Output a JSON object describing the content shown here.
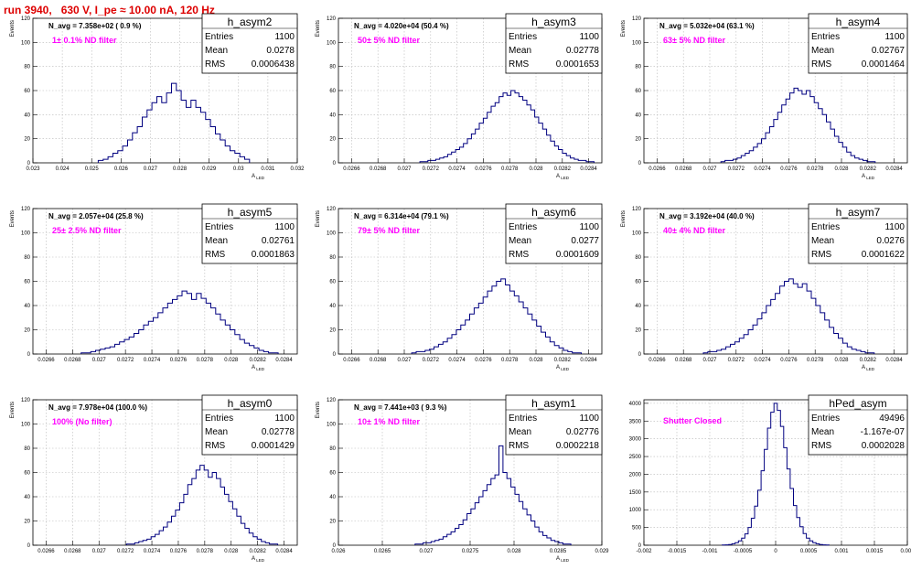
{
  "title": "run 3940,   630 V, I_pe ≈ 10.00 nA, 120 Hz",
  "stat_labels": {
    "entries": "Entries",
    "mean": "Mean",
    "rms": "RMS"
  },
  "chart_data": [
    {
      "type": "histogram",
      "name": "h_asym2",
      "navg": "N_avg = 7.358e+02 ( 0.9 %)",
      "filter": "1± 0.1% ND filter",
      "stats": {
        "entries": "1100",
        "mean": "0.0278",
        "rms": "0.0006438"
      },
      "xlabel": "A_LED",
      "ylabel": "Events",
      "xlim": [
        0.023,
        0.032
      ],
      "ylim": [
        0,
        120
      ],
      "xticks": [
        0.023,
        0.024,
        0.025,
        0.026,
        0.027,
        0.028,
        0.029,
        0.03,
        0.031,
        0.032
      ],
      "xtick_labels": [
        "0.023",
        "0.024",
        "0.025",
        "0.026",
        "0.027",
        "0.028",
        "0.029",
        "0.03",
        "0.031",
        "0.032"
      ],
      "yticks": [
        0,
        20,
        40,
        60,
        80,
        100,
        120
      ],
      "values": [
        2,
        3,
        5,
        8,
        10,
        14,
        19,
        25,
        30,
        38,
        44,
        50,
        55,
        50,
        58,
        66,
        60,
        52,
        46,
        52,
        46,
        42,
        36,
        30,
        24,
        19,
        14,
        10,
        8,
        5,
        3
      ]
    },
    {
      "type": "histogram",
      "name": "h_asym3",
      "navg": "N_avg = 4.020e+04 (50.4 %)",
      "filter": "50± 5% ND filter",
      "stats": {
        "entries": "1100",
        "mean": "0.02778",
        "rms": "0.0001653"
      },
      "xlabel": "A_LED",
      "ylabel": "Events",
      "xlim": [
        0.0265,
        0.0285
      ],
      "ylim": [
        0,
        120
      ],
      "xticks": [
        0.0266,
        0.0268,
        0.027,
        0.0272,
        0.0274,
        0.0276,
        0.0278,
        0.028,
        0.0282,
        0.0284
      ],
      "xtick_labels": [
        "0.0266",
        "0.0268",
        "0.027",
        "0.0272",
        "0.0274",
        "0.0276",
        "0.0278",
        "0.028",
        "0.0282",
        "0.0284"
      ],
      "yticks": [
        0,
        20,
        40,
        60,
        80,
        100,
        120
      ],
      "values": [
        1,
        1,
        2,
        2,
        3,
        4,
        5,
        7,
        9,
        11,
        13,
        16,
        20,
        24,
        28,
        33,
        37,
        42,
        47,
        50,
        55,
        58,
        56,
        60,
        58,
        55,
        52,
        48,
        44,
        38,
        33,
        28,
        23,
        18,
        14,
        11,
        8,
        6,
        4,
        3,
        2,
        2,
        1,
        1
      ]
    },
    {
      "type": "histogram",
      "name": "h_asym4",
      "navg": "N_avg = 5.032e+04 (63.1 %)",
      "filter": "63± 5% ND filter",
      "stats": {
        "entries": "1100",
        "mean": "0.02767",
        "rms": "0.0001464"
      },
      "xlabel": "A_LED",
      "ylabel": "Events",
      "xlim": [
        0.0265,
        0.0285
      ],
      "ylim": [
        0,
        120
      ],
      "xticks": [
        0.0266,
        0.0268,
        0.027,
        0.0272,
        0.0274,
        0.0276,
        0.0278,
        0.028,
        0.0282,
        0.0284
      ],
      "xtick_labels": [
        "0.0266",
        "0.0268",
        "0.027",
        "0.0272",
        "0.0274",
        "0.0276",
        "0.0278",
        "0.028",
        "0.0282",
        "0.0284"
      ],
      "yticks": [
        0,
        20,
        40,
        60,
        80,
        100,
        120
      ],
      "values": [
        1,
        2,
        2,
        3,
        4,
        6,
        8,
        10,
        13,
        16,
        20,
        25,
        30,
        36,
        42,
        48,
        53,
        58,
        62,
        60,
        57,
        60,
        55,
        50,
        45,
        40,
        34,
        28,
        22,
        17,
        13,
        9,
        6,
        4,
        3,
        2,
        1,
        1
      ]
    },
    {
      "type": "histogram",
      "name": "h_asym5",
      "navg": "N_avg = 2.057e+04 (25.8 %)",
      "filter": "25± 2.5% ND filter",
      "stats": {
        "entries": "1100",
        "mean": "0.02761",
        "rms": "0.0001863"
      },
      "xlabel": "A_LED",
      "ylabel": "Events",
      "xlim": [
        0.0265,
        0.0285
      ],
      "ylim": [
        0,
        120
      ],
      "xticks": [
        0.0266,
        0.0268,
        0.027,
        0.0272,
        0.0274,
        0.0276,
        0.0278,
        0.028,
        0.0282,
        0.0284
      ],
      "xtick_labels": [
        "0.0266",
        "0.0268",
        "0.027",
        "0.0272",
        "0.0274",
        "0.0276",
        "0.0278",
        "0.028",
        "0.0282",
        "0.0284"
      ],
      "yticks": [
        0,
        20,
        40,
        60,
        80,
        100,
        120
      ],
      "values": [
        1,
        1,
        2,
        3,
        4,
        5,
        6,
        8,
        10,
        12,
        14,
        17,
        20,
        24,
        27,
        30,
        34,
        38,
        42,
        45,
        48,
        52,
        50,
        45,
        50,
        46,
        42,
        38,
        33,
        28,
        24,
        20,
        16,
        12,
        9,
        7,
        5,
        3,
        2,
        1,
        1
      ]
    },
    {
      "type": "histogram",
      "name": "h_asym6",
      "navg": "N_avg = 6.314e+04 (79.1 %)",
      "filter": "79± 5% ND filter",
      "stats": {
        "entries": "1100",
        "mean": "0.0277",
        "rms": "0.0001609"
      },
      "xlabel": "A_LED",
      "ylabel": "Events",
      "xlim": [
        0.0265,
        0.0285
      ],
      "ylim": [
        0,
        120
      ],
      "xticks": [
        0.0266,
        0.0268,
        0.027,
        0.0272,
        0.0274,
        0.0276,
        0.0278,
        0.028,
        0.0282,
        0.0284
      ],
      "xtick_labels": [
        "0.0266",
        "0.0268",
        "0.027",
        "0.0272",
        "0.0274",
        "0.0276",
        "0.0278",
        "0.028",
        "0.0282",
        "0.0284"
      ],
      "yticks": [
        0,
        20,
        40,
        60,
        80,
        100,
        120
      ],
      "values": [
        1,
        2,
        2,
        3,
        4,
        6,
        8,
        10,
        13,
        16,
        20,
        24,
        28,
        33,
        38,
        42,
        47,
        52,
        56,
        60,
        62,
        57,
        52,
        48,
        43,
        38,
        33,
        28,
        23,
        18,
        14,
        10,
        7,
        5,
        3,
        2,
        1,
        1
      ]
    },
    {
      "type": "histogram",
      "name": "h_asym7",
      "navg": "N_avg = 3.192e+04 (40.0 %)",
      "filter": "40± 4% ND filter",
      "stats": {
        "entries": "1100",
        "mean": "0.0276",
        "rms": "0.0001622"
      },
      "xlabel": "A_LED",
      "ylabel": "Events",
      "xlim": [
        0.0265,
        0.0285
      ],
      "ylim": [
        0,
        120
      ],
      "xticks": [
        0.0266,
        0.0268,
        0.027,
        0.0272,
        0.0274,
        0.0276,
        0.0278,
        0.028,
        0.0282,
        0.0284
      ],
      "xtick_labels": [
        "0.0266",
        "0.0268",
        "0.027",
        "0.0272",
        "0.0274",
        "0.0276",
        "0.0278",
        "0.028",
        "0.0282",
        "0.0284"
      ],
      "yticks": [
        0,
        20,
        40,
        60,
        80,
        100,
        120
      ],
      "values": [
        1,
        2,
        2,
        3,
        4,
        6,
        8,
        10,
        13,
        16,
        20,
        24,
        29,
        34,
        40,
        45,
        50,
        56,
        60,
        62,
        58,
        55,
        58,
        52,
        46,
        40,
        34,
        28,
        22,
        17,
        13,
        9,
        6,
        4,
        3,
        2,
        1,
        1
      ]
    },
    {
      "type": "histogram",
      "name": "h_asym0",
      "navg": "N_avg = 7.978e+04 (100.0 %)",
      "filter": "100% (No filter)",
      "stats": {
        "entries": "1100",
        "mean": "0.02778",
        "rms": "0.0001429"
      },
      "xlabel": "A_LED",
      "ylabel": "Events",
      "xlim": [
        0.0265,
        0.0285
      ],
      "ylim": [
        0,
        120
      ],
      "xticks": [
        0.0266,
        0.0268,
        0.027,
        0.0272,
        0.0274,
        0.0276,
        0.0278,
        0.028,
        0.0282,
        0.0284
      ],
      "xtick_labels": [
        "0.0266",
        "0.0268",
        "0.027",
        "0.0272",
        "0.0274",
        "0.0276",
        "0.0278",
        "0.028",
        "0.0282",
        "0.0284"
      ],
      "yticks": [
        0,
        20,
        40,
        60,
        80,
        100,
        120
      ],
      "values": [
        1,
        1,
        2,
        3,
        4,
        5,
        7,
        9,
        12,
        15,
        19,
        24,
        29,
        35,
        42,
        50,
        55,
        62,
        66,
        62,
        56,
        60,
        55,
        48,
        42,
        36,
        30,
        24,
        18,
        14,
        10,
        7,
        5,
        3,
        2,
        1,
        1
      ]
    },
    {
      "type": "histogram",
      "name": "h_asym1",
      "navg": "N_avg = 7.441e+03 ( 9.3 %)",
      "filter": "10± 1% ND filter",
      "stats": {
        "entries": "1100",
        "mean": "0.02776",
        "rms": "0.0002218"
      },
      "xlabel": "A_LED",
      "ylabel": "Events",
      "xlim": [
        0.026,
        0.029
      ],
      "ylim": [
        0,
        120
      ],
      "xticks": [
        0.026,
        0.0265,
        0.027,
        0.0275,
        0.028,
        0.0285,
        0.029
      ],
      "xtick_labels": [
        "0.026",
        "0.0265",
        "0.027",
        "0.0275",
        "0.028",
        "0.0285",
        "0.029"
      ],
      "yticks": [
        0,
        20,
        40,
        60,
        80,
        100,
        120
      ],
      "values": [
        1,
        1,
        2,
        2,
        3,
        4,
        5,
        7,
        9,
        11,
        14,
        17,
        21,
        26,
        30,
        35,
        40,
        45,
        50,
        55,
        58,
        82,
        60,
        55,
        48,
        42,
        36,
        30,
        25,
        20,
        15,
        11,
        8,
        6,
        4,
        3,
        2,
        1,
        1
      ]
    },
    {
      "type": "histogram",
      "name": "hPed_asym",
      "navg": "",
      "filter": "Shutter Closed",
      "stats": {
        "entries": "49496",
        "mean": "-1.167e-07",
        "rms": "0.0002028"
      },
      "xlabel": "",
      "ylabel": "",
      "xlim": [
        -0.002,
        0.002
      ],
      "ylim": [
        0,
        4100
      ],
      "xticks": [
        -0.002,
        -0.0015,
        -0.001,
        -0.0005,
        0,
        0.0005,
        0.001,
        0.0015,
        0.002
      ],
      "xtick_labels": [
        "-0.002",
        "-0.0015",
        "-0.001",
        "-0.0005",
        "0",
        "0.0005",
        "0.001",
        "0.0015",
        "0.002"
      ],
      "yticks": [
        0,
        500,
        1000,
        1500,
        2000,
        2500,
        3000,
        3500,
        4000
      ],
      "values": [
        5,
        10,
        20,
        40,
        70,
        120,
        200,
        320,
        500,
        760,
        1100,
        1550,
        2100,
        2700,
        3300,
        3750,
        4000,
        3800,
        3350,
        2750,
        2150,
        1600,
        1120,
        780,
        520,
        330,
        200,
        120,
        70,
        40,
        20,
        10,
        5
      ]
    }
  ]
}
